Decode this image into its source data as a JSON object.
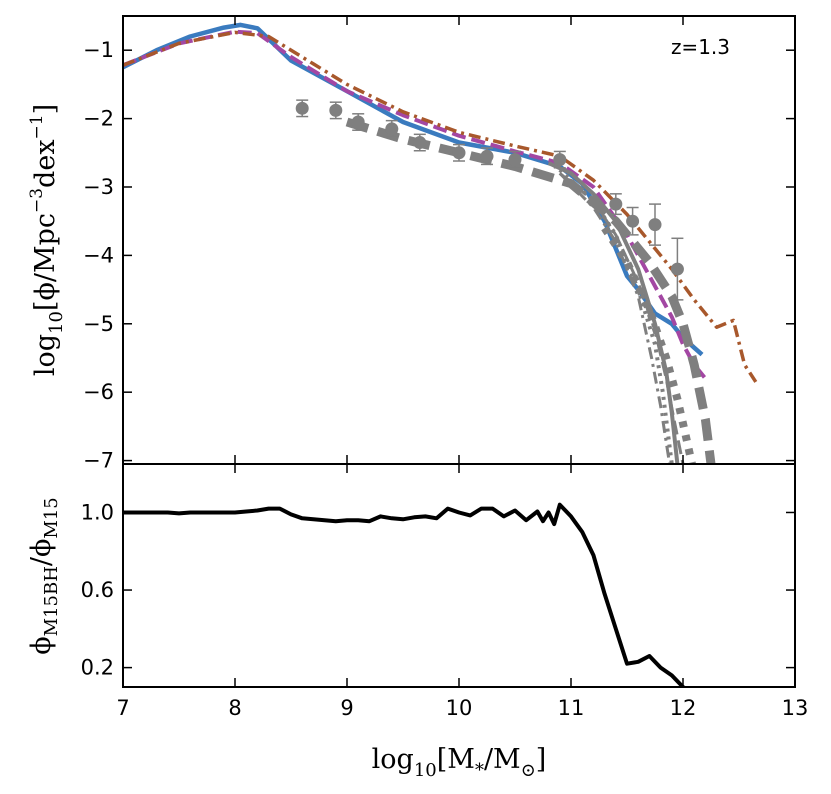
{
  "chart_data": [
    {
      "panel": "top",
      "type": "line",
      "annotation": "z=1.3",
      "xlim": [
        7,
        13
      ],
      "ylim": [
        -7.05,
        -0.5
      ],
      "x_ticks": [
        7,
        8,
        9,
        10,
        11,
        12,
        13
      ],
      "y_ticks": [
        -1,
        -2,
        -3,
        -4,
        -5,
        -6,
        -7
      ],
      "y_tick_labels": [
        "−1",
        "−2",
        "−3",
        "−4",
        "−5",
        "−6",
        "−7"
      ],
      "ylabel": {
        "pre": "log",
        "sub": "10",
        "main": "[ϕ/Mpc",
        "sup1": "−3",
        "mid": "dex",
        "sup2": "−1",
        "post": "]"
      },
      "series": [
        {
          "name": "model-blue-solid",
          "color": "#3a7bbf",
          "style": "solid",
          "width": 4.5,
          "x": [
            7.0,
            7.3,
            7.6,
            7.9,
            8.05,
            8.2,
            8.5,
            9.0,
            9.5,
            10.0,
            10.5,
            10.9,
            11.1,
            11.3,
            11.5,
            11.6,
            11.75,
            11.9,
            12.0,
            12.1,
            12.17
          ],
          "y": [
            -1.25,
            -1.0,
            -0.8,
            -0.67,
            -0.63,
            -0.68,
            -1.15,
            -1.6,
            -2.05,
            -2.35,
            -2.5,
            -2.7,
            -2.95,
            -3.5,
            -4.3,
            -4.5,
            -4.85,
            -5.0,
            -5.2,
            -5.35,
            -5.45
          ]
        },
        {
          "name": "model-purple-dashed",
          "color": "#a347a3",
          "style": "dashed",
          "width": 4.0,
          "x": [
            7.0,
            7.5,
            8.0,
            8.2,
            8.5,
            9.0,
            9.5,
            10.0,
            10.5,
            10.9,
            11.2,
            11.5,
            11.7,
            11.9,
            12.0,
            12.1,
            12.2
          ],
          "y": [
            -1.22,
            -0.9,
            -0.73,
            -0.75,
            -1.1,
            -1.6,
            -1.95,
            -2.25,
            -2.48,
            -2.65,
            -3.0,
            -3.7,
            -4.3,
            -4.9,
            -5.3,
            -5.6,
            -5.8
          ]
        },
        {
          "name": "model-brown-dashdot",
          "color": "#a8582c",
          "style": "dashdot",
          "width": 3.5,
          "x": [
            7.0,
            7.5,
            8.0,
            8.3,
            8.7,
            9.0,
            9.5,
            10.0,
            10.5,
            10.9,
            11.2,
            11.5,
            11.7,
            11.9,
            12.1,
            12.3,
            12.45,
            12.55,
            12.65
          ],
          "y": [
            -1.22,
            -0.9,
            -0.74,
            -0.8,
            -1.2,
            -1.5,
            -1.9,
            -2.2,
            -2.4,
            -2.55,
            -2.9,
            -3.4,
            -3.8,
            -4.2,
            -4.65,
            -5.05,
            -4.95,
            -5.6,
            -5.85
          ]
        },
        {
          "name": "obs-gray-solid",
          "color": "#7f7f7f",
          "style": "solid",
          "width": 4.0,
          "x": [
            10.8,
            11.0,
            11.2,
            11.4,
            11.6,
            11.75,
            11.85,
            11.9,
            11.95
          ],
          "y": [
            -2.65,
            -2.8,
            -3.1,
            -3.5,
            -4.2,
            -5.0,
            -5.7,
            -6.3,
            -7.05
          ]
        },
        {
          "name": "obs-gray-dashed",
          "color": "#7f7f7f",
          "style": "dashed",
          "width": 3.0,
          "x": [
            10.9,
            11.2,
            11.4,
            11.6,
            11.75,
            11.85,
            11.92,
            12.0
          ],
          "y": [
            -2.8,
            -3.2,
            -3.7,
            -4.4,
            -5.1,
            -5.8,
            -6.4,
            -7.05
          ]
        },
        {
          "name": "obs-gray-dotted",
          "color": "#7f7f7f",
          "style": "dotted",
          "width": 4.0,
          "x": [
            10.9,
            11.2,
            11.4,
            11.6,
            11.75,
            11.82,
            11.9
          ],
          "y": [
            -2.75,
            -3.2,
            -3.7,
            -4.5,
            -5.3,
            -6.0,
            -7.05
          ]
        },
        {
          "name": "obs-gray-dashdot",
          "color": "#7f7f7f",
          "style": "dashdot",
          "width": 3.0,
          "x": [
            10.9,
            11.2,
            11.4,
            11.6,
            11.72,
            11.8,
            11.88
          ],
          "y": [
            -2.8,
            -3.3,
            -3.8,
            -4.6,
            -5.5,
            -6.2,
            -7.05
          ]
        },
        {
          "name": "obs-gray-thick-dashed",
          "color": "#7f7f7f",
          "style": "thickdash",
          "width": 9.0,
          "x": [
            9.0,
            9.5,
            10.0,
            10.5,
            11.0,
            11.4,
            11.7,
            11.9,
            12.0,
            12.1,
            12.2,
            12.25
          ],
          "y": [
            -2.05,
            -2.3,
            -2.5,
            -2.7,
            -2.95,
            -3.5,
            -4.1,
            -4.6,
            -5.0,
            -5.6,
            -6.4,
            -7.05
          ]
        },
        {
          "name": "obs-gray-thick-dotted",
          "color": "#7f7f7f",
          "style": "thickdot",
          "width": 8.0,
          "x": [
            11.3,
            11.5,
            11.7,
            11.85,
            11.95,
            12.02,
            12.08
          ],
          "y": [
            -3.6,
            -4.1,
            -4.8,
            -5.5,
            -6.1,
            -6.6,
            -7.05
          ]
        }
      ],
      "points": {
        "name": "observations",
        "color": "#7f7f7f",
        "x": [
          8.6,
          8.9,
          9.1,
          9.4,
          9.65,
          10.0,
          10.25,
          10.5,
          10.9,
          11.4,
          11.55,
          11.75,
          11.95
        ],
        "y": [
          -1.85,
          -1.88,
          -2.05,
          -2.15,
          -2.35,
          -2.5,
          -2.55,
          -2.6,
          -2.6,
          -3.25,
          -3.5,
          -3.55,
          -4.2
        ],
        "yerr": [
          0.12,
          0.12,
          0.12,
          0.12,
          0.12,
          0.12,
          0.12,
          0.12,
          0.12,
          0.15,
          0.2,
          0.3,
          0.45
        ]
      }
    },
    {
      "panel": "bottom",
      "type": "line",
      "xlim": [
        7,
        13
      ],
      "ylim": [
        0.1,
        1.25
      ],
      "x_ticks": [
        7,
        8,
        9,
        10,
        11,
        12,
        13
      ],
      "x_tick_labels": [
        "7",
        "8",
        "9",
        "10",
        "11",
        "12",
        "13"
      ],
      "y_ticks": [
        1.0,
        0.6,
        0.2
      ],
      "y_tick_labels": [
        "1.0",
        "0.6",
        "0.2"
      ],
      "xlabel": {
        "pre": "log",
        "sub": "10",
        "main": "[M",
        "sub2": "*",
        "mid": "/M",
        "sub3": "⊙",
        "post": "]"
      },
      "ylabel": {
        "num": "ϕ",
        "num_sub": "M15BH",
        "den": "/ϕ",
        "den_sub": "M15"
      },
      "series": [
        {
          "name": "ratio",
          "color": "#000000",
          "style": "solid",
          "width": 4.0,
          "x": [
            7.0,
            7.1,
            7.2,
            7.3,
            7.4,
            7.5,
            7.6,
            7.7,
            7.8,
            7.9,
            8.0,
            8.1,
            8.2,
            8.3,
            8.4,
            8.5,
            8.6,
            8.7,
            8.8,
            8.9,
            9.0,
            9.1,
            9.2,
            9.3,
            9.4,
            9.5,
            9.6,
            9.7,
            9.8,
            9.9,
            10.0,
            10.1,
            10.2,
            10.3,
            10.4,
            10.5,
            10.6,
            10.7,
            10.75,
            10.8,
            10.85,
            10.9,
            11.0,
            11.1,
            11.2,
            11.3,
            11.4,
            11.5,
            11.6,
            11.7,
            11.8,
            11.9,
            12.0,
            12.05
          ],
          "y": [
            1.0,
            1.0,
            1.0,
            1.0,
            1.0,
            0.995,
            1.0,
            1.0,
            1.0,
            1.0,
            1.0,
            1.005,
            1.01,
            1.02,
            1.02,
            0.99,
            0.97,
            0.965,
            0.96,
            0.955,
            0.96,
            0.96,
            0.955,
            0.98,
            0.97,
            0.965,
            0.975,
            0.98,
            0.97,
            1.02,
            1.0,
            0.985,
            1.02,
            1.02,
            0.98,
            1.01,
            0.96,
            1.005,
            0.955,
            1.0,
            0.94,
            1.04,
            0.98,
            0.9,
            0.78,
            0.58,
            0.4,
            0.22,
            0.23,
            0.26,
            0.2,
            0.16,
            0.1,
            0.08
          ]
        }
      ]
    }
  ]
}
